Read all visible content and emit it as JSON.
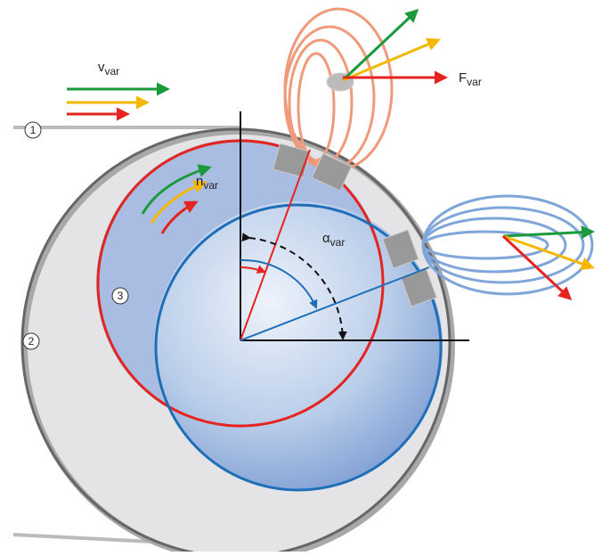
{
  "labels": {
    "velocity": {
      "symbol": "v",
      "subscript": "var"
    },
    "force": {
      "symbol": "F",
      "subscript": "var"
    },
    "speed": {
      "symbol": "n",
      "subscript": "var"
    },
    "angle": {
      "symbol": "α",
      "subscript": "var"
    }
  },
  "markers": [
    "1",
    "2",
    "3"
  ]
}
